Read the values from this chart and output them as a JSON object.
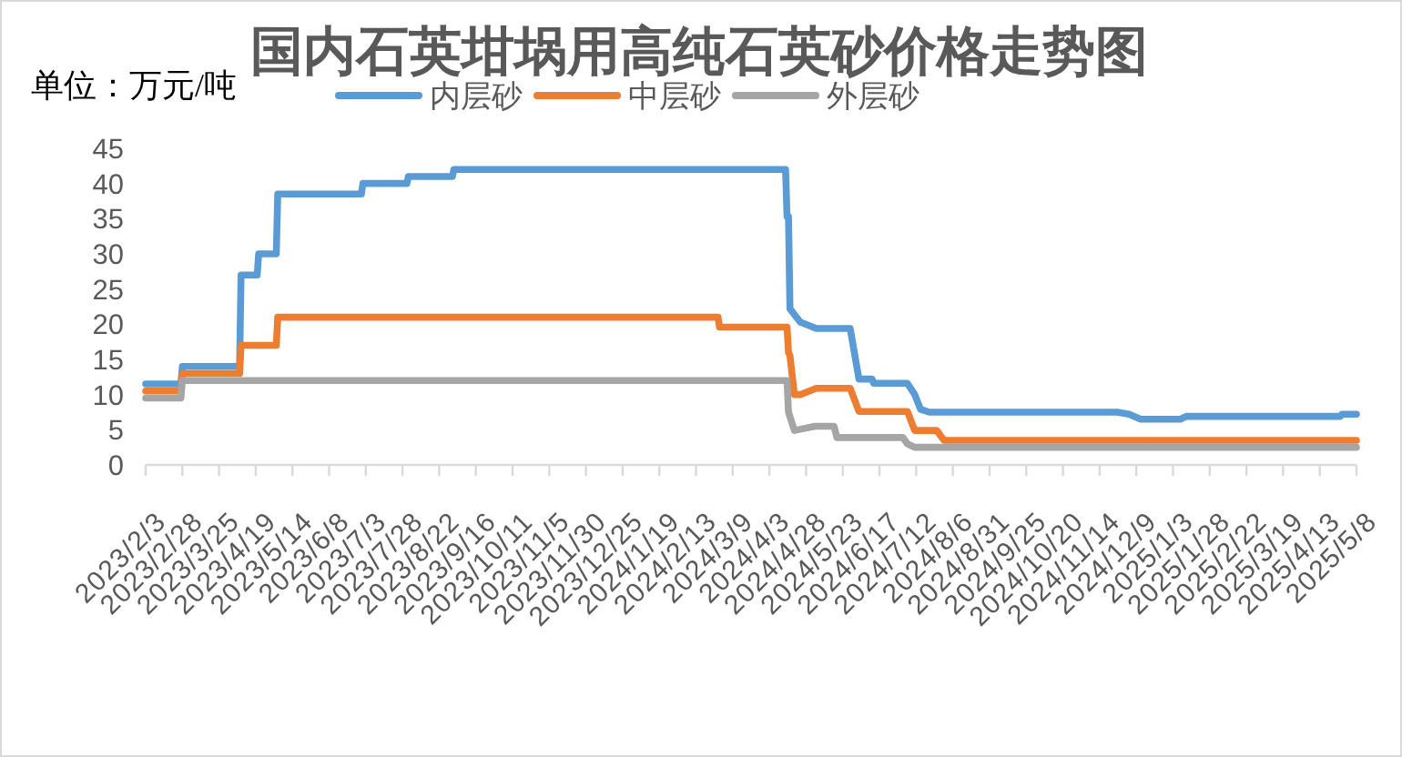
{
  "chart_data": {
    "type": "line",
    "title": "国内石英坩埚用高纯石英砂价格走势图",
    "ylabel": "单位：万元/吨",
    "legend": "top",
    "line_style": "solid",
    "xlim": [
      "2023-02-03",
      "2025-05-08"
    ],
    "xticks": [
      {
        "value": "2023-02-03",
        "label": "2023/2/3"
      },
      {
        "value": "2023-02-28",
        "label": "2023/2/28"
      },
      {
        "value": "2023-03-25",
        "label": "2023/3/25"
      },
      {
        "value": "2023-04-19",
        "label": "2023/4/19"
      },
      {
        "value": "2023-05-14",
        "label": "2023/5/14"
      },
      {
        "value": "2023-06-08",
        "label": "2023/6/8"
      },
      {
        "value": "2023-07-03",
        "label": "2023/7/3"
      },
      {
        "value": "2023-07-28",
        "label": "2023/7/28"
      },
      {
        "value": "2023-08-22",
        "label": "2023/8/22"
      },
      {
        "value": "2023-09-16",
        "label": "2023/9/16"
      },
      {
        "value": "2023-10-11",
        "label": "2023/10/11"
      },
      {
        "value": "2023-11-05",
        "label": "2023/11/5"
      },
      {
        "value": "2023-11-30",
        "label": "2023/11/30"
      },
      {
        "value": "2023-12-25",
        "label": "2023/12/25"
      },
      {
        "value": "2024-01-19",
        "label": "2024/1/19"
      },
      {
        "value": "2024-02-13",
        "label": "2024/2/13"
      },
      {
        "value": "2024-03-09",
        "label": "2024/3/9"
      },
      {
        "value": "2024-04-03",
        "label": "2024/4/3"
      },
      {
        "value": "2024-04-28",
        "label": "2024/4/28"
      },
      {
        "value": "2024-05-23",
        "label": "2024/5/23"
      },
      {
        "value": "2024-06-17",
        "label": "2024/6/17"
      },
      {
        "value": "2024-07-12",
        "label": "2024/7/12"
      },
      {
        "value": "2024-08-06",
        "label": "2024/8/6"
      },
      {
        "value": "2024-08-31",
        "label": "2024/8/31"
      },
      {
        "value": "2024-09-25",
        "label": "2024/9/25"
      },
      {
        "value": "2024-10-20",
        "label": "2024/10/20"
      },
      {
        "value": "2024-11-14",
        "label": "2024/11/14"
      },
      {
        "value": "2024-12-09",
        "label": "2024/12/9"
      },
      {
        "value": "2025-01-03",
        "label": "2025/1/3"
      },
      {
        "value": "2025-01-28",
        "label": "2025/1/28"
      },
      {
        "value": "2025-02-22",
        "label": "2025/2/22"
      },
      {
        "value": "2025-03-19",
        "label": "2025/3/19"
      },
      {
        "value": "2025-04-13",
        "label": "2025/4/13"
      },
      {
        "value": "2025-05-08",
        "label": "2025/5/8"
      }
    ],
    "ylim": [
      0,
      45
    ],
    "yticks": [
      0,
      5,
      10,
      15,
      20,
      25,
      30,
      35,
      40,
      45
    ],
    "series": [
      {
        "name": "内层砂",
        "color": "#5b9bd5",
        "x": [
          "2023-02-03",
          "2023-02-27",
          "2023-02-28",
          "2023-04-08",
          "2023-04-09",
          "2023-04-20",
          "2023-04-21",
          "2023-05-03",
          "2023-05-04",
          "2023-06-30",
          "2023-07-01",
          "2023-07-31",
          "2023-08-01",
          "2023-08-31",
          "2023-09-01",
          "2024-04-14",
          "2024-04-15",
          "2024-04-16",
          "2024-04-17",
          "2024-04-24",
          "2024-05-05",
          "2024-05-28",
          "2024-06-03",
          "2024-06-12",
          "2024-06-13",
          "2024-07-06",
          "2024-07-11",
          "2024-07-15",
          "2024-07-21",
          "2024-11-26",
          "2024-12-04",
          "2024-12-12",
          "2025-01-08",
          "2025-01-12",
          "2025-04-27",
          "2025-04-28",
          "2025-05-08"
        ],
        "values": [
          11.5,
          11.5,
          14,
          14,
          27,
          27,
          30,
          30,
          38.5,
          38.5,
          40,
          40,
          41,
          41,
          42,
          42,
          35.3,
          35.3,
          22.2,
          20.3,
          19.4,
          19.4,
          12.2,
          12.2,
          11.6,
          11.6,
          10.0,
          7.9,
          7.5,
          7.5,
          7.2,
          6.5,
          6.5,
          6.9,
          6.9,
          7.2,
          7.2
        ]
      },
      {
        "name": "中层砂",
        "color": "#ed7d31",
        "x": [
          "2023-02-03",
          "2023-02-27",
          "2023-02-28",
          "2023-04-08",
          "2023-04-09",
          "2023-05-03",
          "2023-05-04",
          "2024-02-28",
          "2024-02-29",
          "2024-04-15",
          "2024-04-16",
          "2024-04-17",
          "2024-04-20",
          "2024-04-24",
          "2024-05-05",
          "2024-05-28",
          "2024-06-03",
          "2024-07-06",
          "2024-07-11",
          "2024-07-26",
          "2024-07-31",
          "2025-05-08"
        ],
        "values": [
          10.5,
          10.5,
          13,
          13,
          17,
          17,
          21,
          21,
          19.6,
          19.6,
          16.0,
          15.5,
          10.0,
          10.0,
          10.9,
          10.9,
          7.6,
          7.6,
          4.9,
          4.9,
          3.5,
          3.5
        ]
      },
      {
        "name": "外层砂",
        "color": "#a5a5a5",
        "x": [
          "2023-02-03",
          "2023-02-27",
          "2023-02-28",
          "2024-04-15",
          "2024-04-16",
          "2024-04-20",
          "2024-05-04",
          "2024-05-17",
          "2024-05-19",
          "2024-07-03",
          "2024-07-06",
          "2024-07-11",
          "2025-05-08"
        ],
        "values": [
          9.5,
          9.5,
          12,
          12,
          7.5,
          4.9,
          5.5,
          5.5,
          3.9,
          3.9,
          3.0,
          2.5,
          2.5
        ]
      }
    ]
  }
}
